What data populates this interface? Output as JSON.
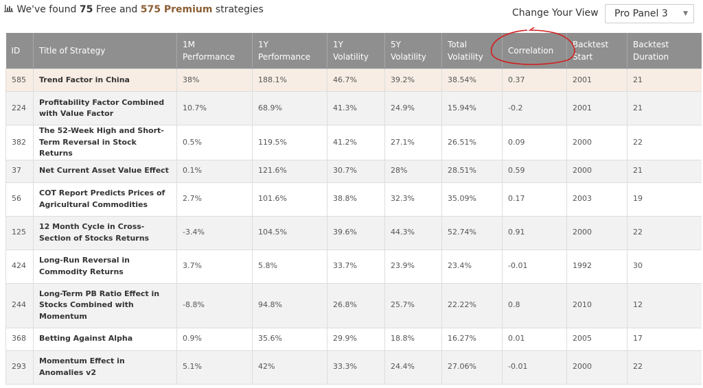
{
  "header": {
    "found_prefix": "We've found",
    "free_count": "75",
    "free_text": "Free and",
    "premium": "575 Premium",
    "suffix": "strategies",
    "view_label": "Change Your View",
    "view_select": "Pro Panel 3"
  },
  "table": {
    "columns": [
      "ID",
      "Title of Strategy",
      "1M Performance",
      "1Y Performance",
      "1Y Volatility",
      "5Y Volatility",
      "Total Volatility",
      "Correlation",
      "Backtest Start",
      "Backtest Duration"
    ],
    "rows": [
      [
        "585",
        "Trend Factor in China",
        "38%",
        "188.1%",
        "46.7%",
        "39.2%",
        "38.54%",
        "0.37",
        "2001",
        "21"
      ],
      [
        "224",
        "Profitability Factor Combined with Value Factor",
        "10.7%",
        "68.9%",
        "41.3%",
        "24.9%",
        "15.94%",
        "-0.2",
        "2001",
        "21"
      ],
      [
        "382",
        "The 52-Week High and Short-Term Reversal in Stock Returns",
        "0.5%",
        "119.5%",
        "41.2%",
        "27.1%",
        "26.51%",
        "0.09",
        "2000",
        "22"
      ],
      [
        "37",
        "Net Current Asset Value Effect",
        "0.1%",
        "121.6%",
        "30.7%",
        "28%",
        "28.51%",
        "0.59",
        "2000",
        "21"
      ],
      [
        "56",
        "COT Report Predicts Prices of Agricultural Commodities",
        "2.7%",
        "101.6%",
        "38.8%",
        "32.3%",
        "35.09%",
        "0.17",
        "2003",
        "19"
      ],
      [
        "125",
        "12 Month Cycle in Cross-Section of Stocks Returns",
        "-3.4%",
        "104.5%",
        "39.6%",
        "44.3%",
        "52.74%",
        "0.91",
        "2000",
        "22"
      ],
      [
        "424",
        "Long-Run Reversal in Commodity Returns",
        "3.7%",
        "5.8%",
        "33.7%",
        "23.9%",
        "23.4%",
        "-0.01",
        "1992",
        "30"
      ],
      [
        "244",
        "Long-Term PB Ratio Effect in Stocks Combined with Momentum",
        "-8.8%",
        "94.8%",
        "26.8%",
        "25.7%",
        "22.22%",
        "0.8",
        "2010",
        "12"
      ],
      [
        "368",
        "Betting Against Alpha",
        "0.9%",
        "35.6%",
        "29.9%",
        "18.8%",
        "16.27%",
        "0.01",
        "2005",
        "17"
      ],
      [
        "293",
        "Momentum Effect in Anomalies v2",
        "5.1%",
        "42%",
        "33.3%",
        "24.4%",
        "27.06%",
        "-0.01",
        "2000",
        "22"
      ]
    ]
  }
}
